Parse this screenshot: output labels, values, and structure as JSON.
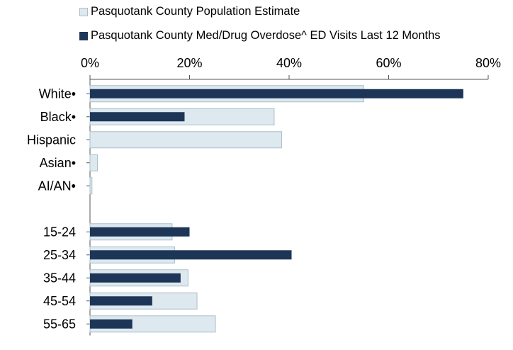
{
  "chart_data": {
    "type": "bar",
    "orientation": "horizontal",
    "title": "",
    "xlabel": "",
    "ylabel": "",
    "xlim": [
      0,
      80
    ],
    "x_ticks": [
      "0%",
      "20%",
      "40%",
      "60%",
      "80%"
    ],
    "x_axis_position": "top",
    "grid": false,
    "legend_position": "top",
    "categories": [
      "White•",
      "Black•",
      "Hispanic",
      "Asian•",
      "AI/AN•",
      "",
      "15-24",
      "25-34",
      "35-44",
      "45-54",
      "55-65"
    ],
    "series": [
      {
        "name": "Pasquotank County Population Estimate",
        "color": "#dde8ef",
        "border": "#aabfcd",
        "values": [
          55,
          37,
          38.5,
          1.5,
          0.4,
          null,
          16.5,
          17,
          19.7,
          21.5,
          25.2
        ]
      },
      {
        "name": "Pasquotank County Med/Drug Overdose^ ED Visits Last 12 Months",
        "color": "#1d3557",
        "border": "#1d3557",
        "values": [
          75,
          19,
          null,
          null,
          null,
          null,
          20,
          40.5,
          18.2,
          12.5,
          8.5
        ]
      }
    ]
  }
}
